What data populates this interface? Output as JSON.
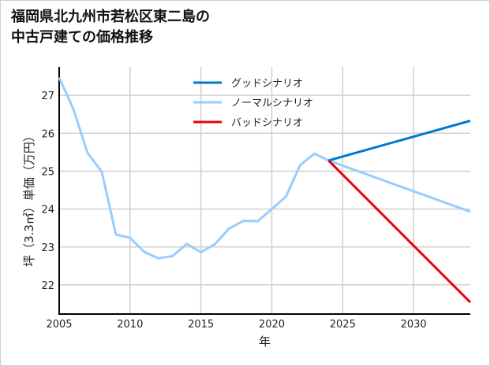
{
  "chart_data": {
    "type": "line",
    "title_line1": "福岡県北九州市若松区東二島の",
    "title_line2": "中古戸建ての価格推移",
    "xlabel": "年",
    "ylabel": "坪（3.3㎡）単価（万円）",
    "xlim": [
      2005,
      2034
    ],
    "ylim": [
      21.23,
      27.75
    ],
    "x_ticks": [
      2005,
      2010,
      2015,
      2020,
      2025,
      2030
    ],
    "y_ticks": [
      22,
      23,
      24,
      25,
      26,
      27
    ],
    "grid": true,
    "legend_position": "top-center",
    "series": [
      {
        "name": "グッドシナリオ",
        "color": "#0077cc",
        "x": [
          2024,
          2034
        ],
        "values": [
          25.28,
          26.33
        ]
      },
      {
        "name": "ノーマルシナリオ",
        "color": "#99ccff",
        "x": [
          2005,
          2006,
          2007,
          2008,
          2009,
          2010,
          2011,
          2012,
          2013,
          2014,
          2015,
          2016,
          2017,
          2018,
          2019,
          2020,
          2021,
          2022,
          2023,
          2024,
          2034
        ],
        "values": [
          27.47,
          26.64,
          25.48,
          24.99,
          23.33,
          23.24,
          22.87,
          22.7,
          22.76,
          23.08,
          22.86,
          23.08,
          23.49,
          23.69,
          23.68,
          24.0,
          24.33,
          25.16,
          25.46,
          25.28,
          23.93
        ]
      },
      {
        "name": "バッドシナリオ",
        "color": "#ee0000",
        "x": [
          2024,
          2034
        ],
        "values": [
          25.28,
          21.54
        ]
      }
    ]
  }
}
